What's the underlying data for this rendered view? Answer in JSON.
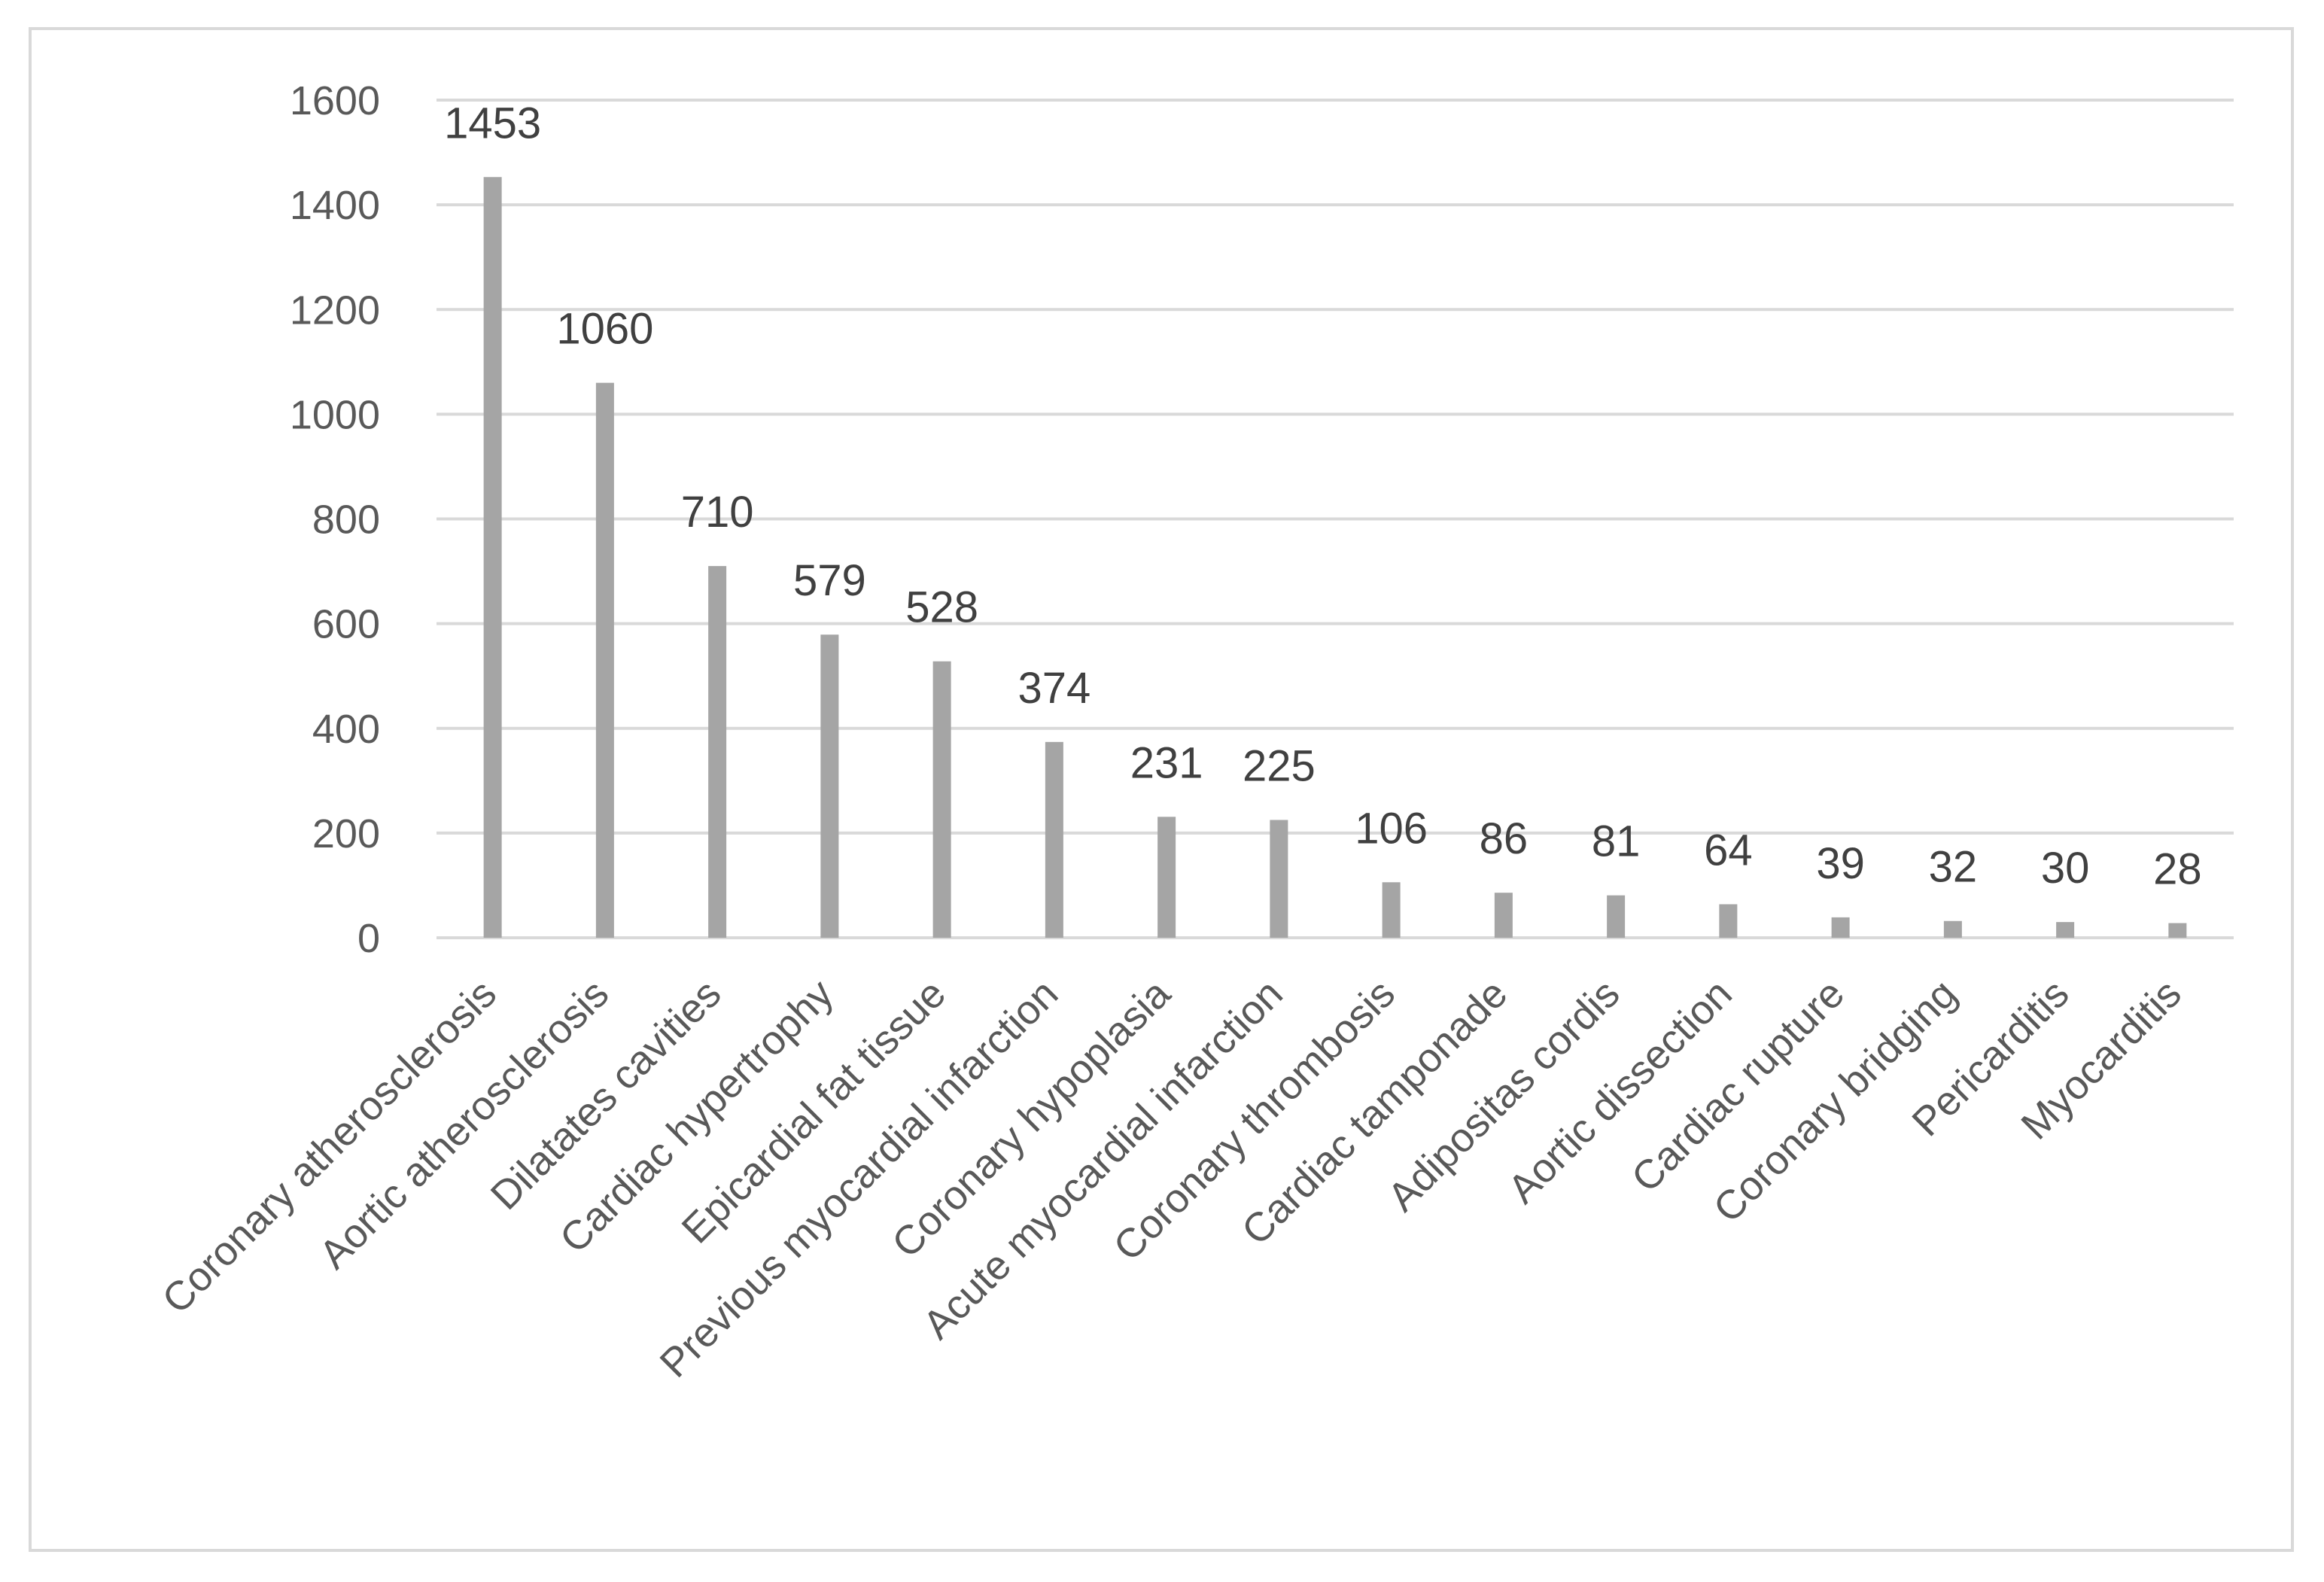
{
  "chart_data": {
    "type": "bar",
    "categories": [
      "Coronary atherosclerosis",
      "Aortic atherosclerosis",
      "Dilatates cavities",
      "Cardiac hypertrophy",
      "Epicardial fat tissue",
      "Previous myocardial infarction",
      "Coronary hypoplasia",
      "Acute myocardial infarction",
      "Coronary thrombosis",
      "Cardiac tamponade",
      "Adipositas cordis",
      "Aortic dissection",
      "Cardiac rupture",
      "Coronary bridging",
      "Pericarditis",
      "Myocarditis"
    ],
    "values": [
      1453,
      1060,
      710,
      579,
      528,
      374,
      231,
      225,
      106,
      86,
      81,
      64,
      39,
      32,
      30,
      28
    ],
    "title": "",
    "xlabel": "",
    "ylabel": "",
    "ylim": [
      0,
      1600
    ],
    "yticks": [
      0,
      200,
      400,
      600,
      800,
      1000,
      1200,
      1400,
      1600
    ],
    "grid": true,
    "legend": "none",
    "bar_color": "#a5a5a5",
    "grid_color": "#d9d9d9",
    "data_labels": true
  }
}
